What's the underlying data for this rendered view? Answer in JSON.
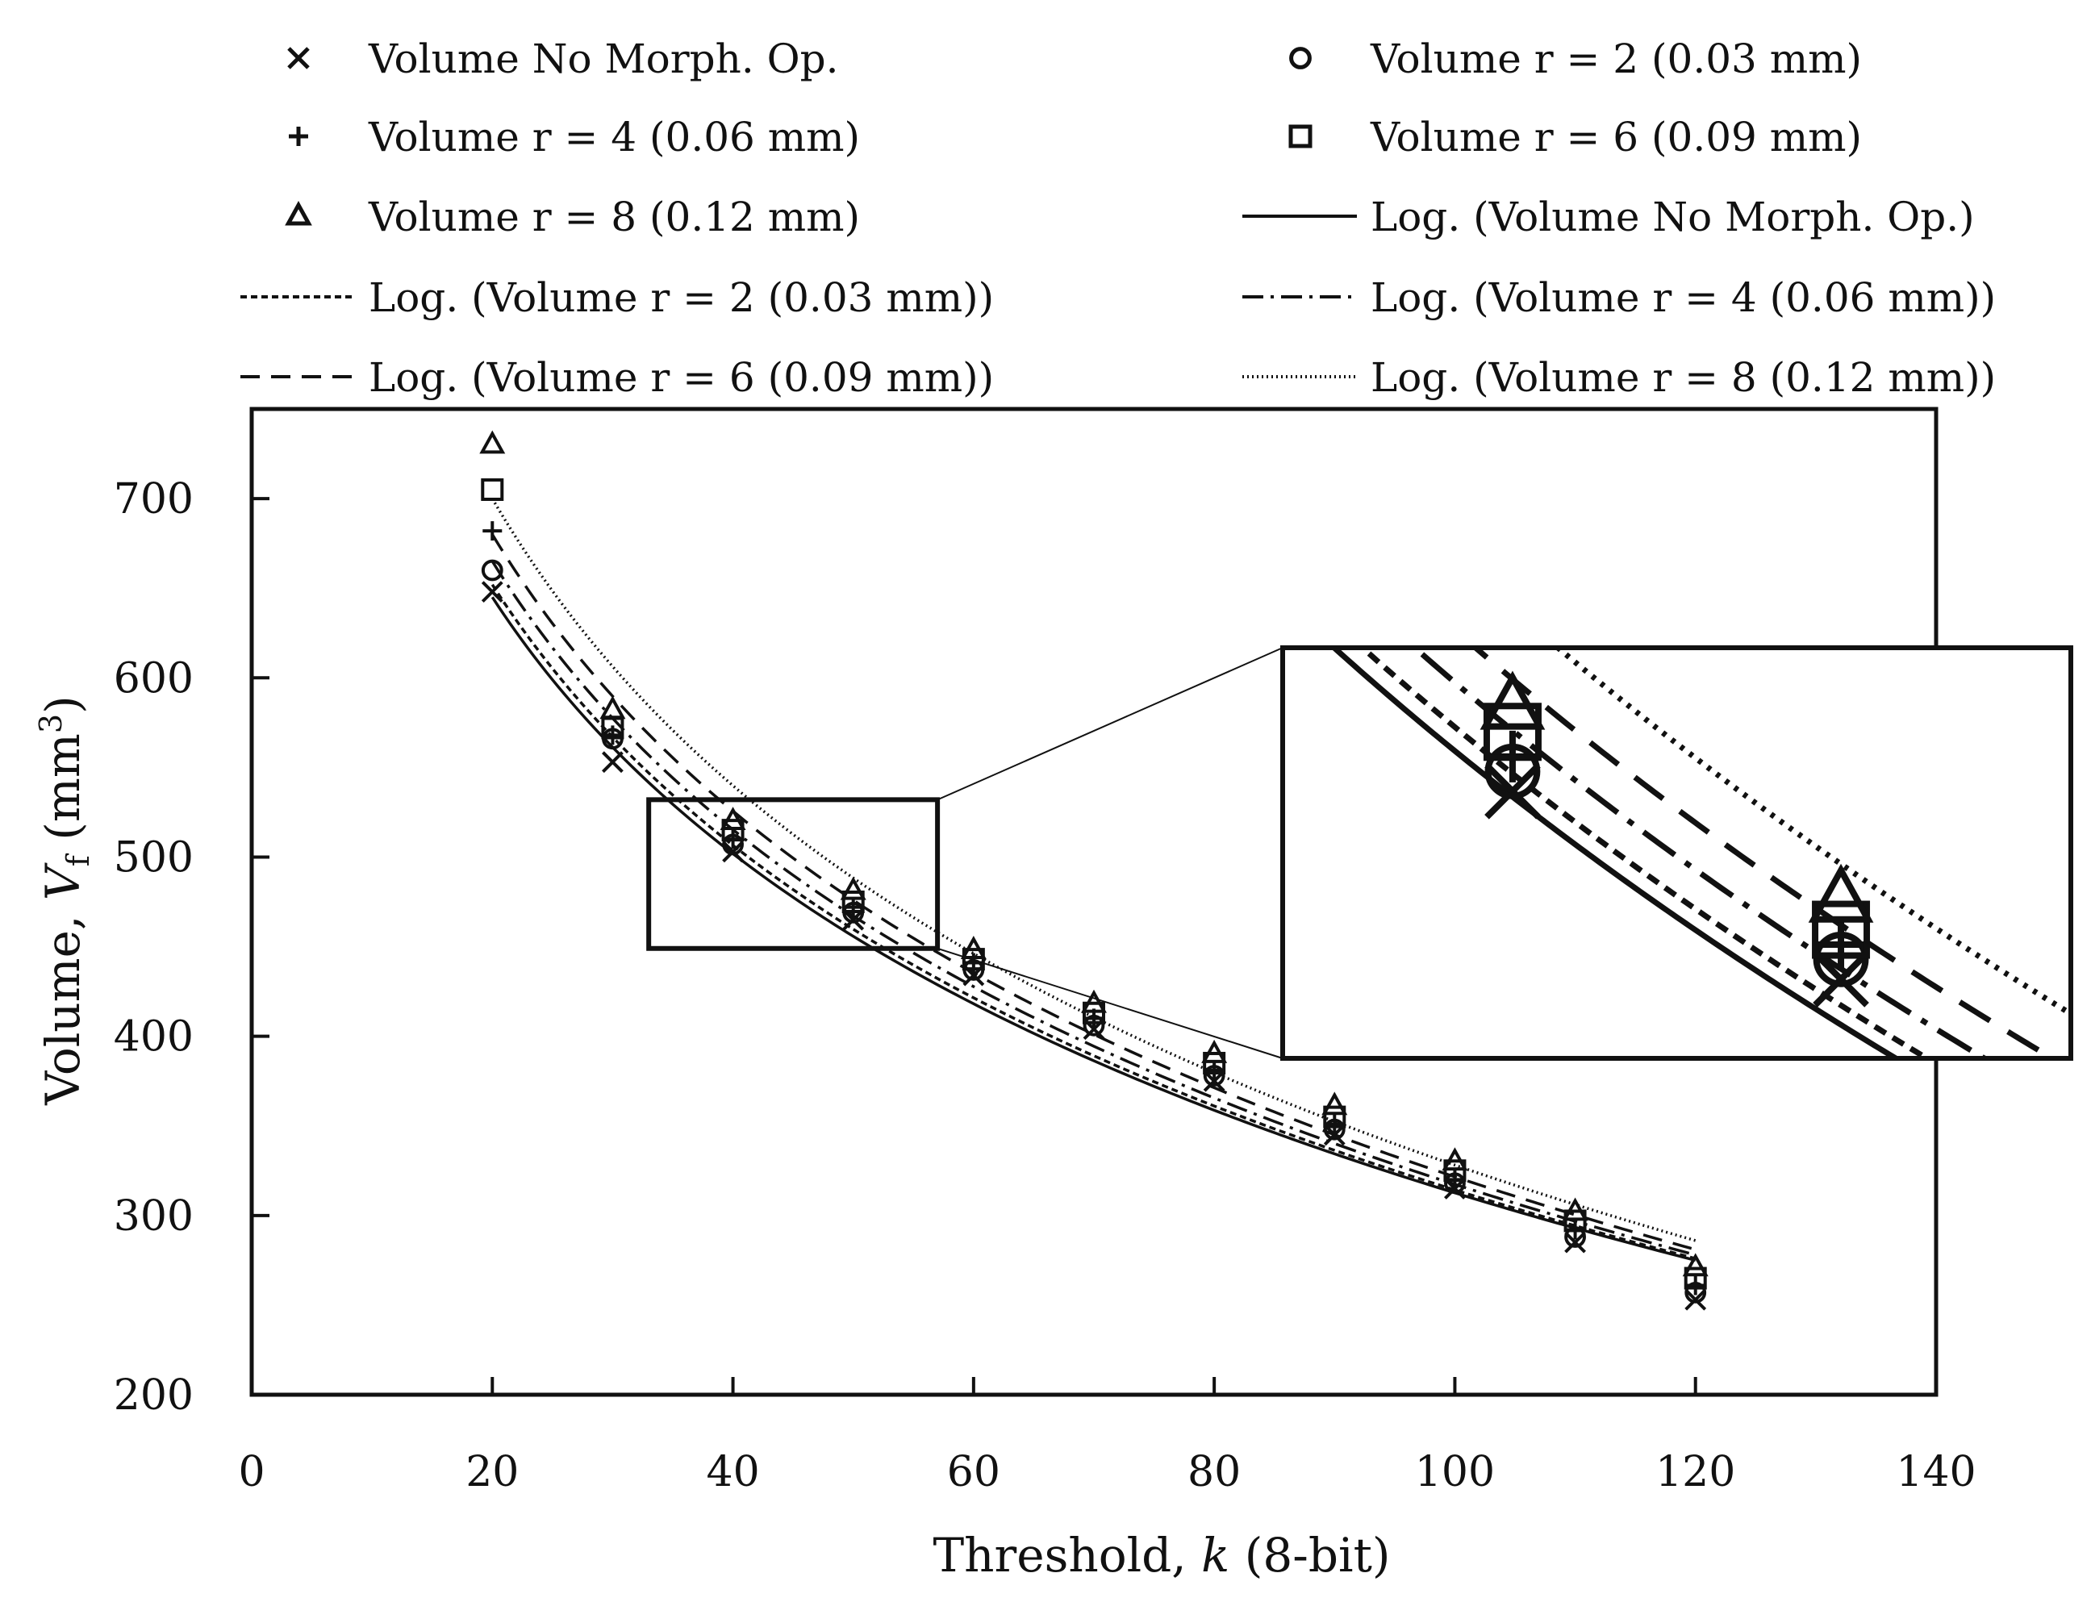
{
  "chart_data": {
    "type": "scatter",
    "title": "",
    "xlabel": "Threshold, k (8-bit)",
    "xlabel_parts": {
      "prefix": "Threshold, ",
      "var": "k",
      "suffix": " (8-bit)"
    },
    "ylabel": "Volume, Vf (mm³)",
    "ylabel_parts": {
      "prefix": "Volume, ",
      "var": "V",
      "sub": "f",
      "suffix": " (mm",
      "sup": "3",
      "close": ")"
    },
    "xlim": [
      0,
      140
    ],
    "ylim": [
      200,
      750
    ],
    "xticks": [
      0,
      20,
      40,
      60,
      80,
      100,
      120,
      140
    ],
    "yticks": [
      200,
      300,
      400,
      500,
      600,
      700
    ],
    "grid": false,
    "legend_position": "top",
    "x": [
      20,
      30,
      40,
      50,
      60,
      70,
      80,
      90,
      100,
      110,
      120
    ],
    "series": [
      {
        "name": "Volume No Morph. Op.",
        "marker": "x",
        "values": [
          648,
          553,
          503,
          465,
          434,
          404,
          375,
          345,
          315,
          285,
          253
        ]
      },
      {
        "name": "Volume r = 2 (0.03 mm)",
        "marker": "circle",
        "values": [
          660,
          566,
          507,
          469,
          437,
          406,
          378,
          348,
          318,
          288,
          257
        ]
      },
      {
        "name": "Volume r = 4 (0.06 mm)",
        "marker": "plus",
        "values": [
          682,
          568,
          510,
          472,
          441,
          410,
          381,
          351,
          320,
          292,
          261
        ]
      },
      {
        "name": "Volume r = 6 (0.09 mm)",
        "marker": "square",
        "values": [
          705,
          572,
          515,
          475,
          443,
          413,
          385,
          355,
          325,
          297,
          265
        ]
      },
      {
        "name": "Volume r = 8 (0.12 mm)",
        "marker": "triangle",
        "values": [
          730,
          582,
          520,
          481,
          448,
          418,
          390,
          361,
          330,
          302,
          271
        ]
      }
    ],
    "trendlines": [
      {
        "name": "Log. (Volume No Morph. Op.)",
        "style": "solid",
        "start": 645,
        "end": 275
      },
      {
        "name": "Log. (Volume r = 2 (0.03 mm))",
        "style": "dashed-fine",
        "start": 652,
        "end": 276
      },
      {
        "name": "Log. (Volume r = 4 (0.06 mm))",
        "style": "dash-dot",
        "start": 665,
        "end": 278
      },
      {
        "name": "Log. (Volume r = 6 (0.09 mm))",
        "style": "dashed",
        "start": 680,
        "end": 281
      },
      {
        "name": "Log. (Volume r = 8 (0.12 mm))",
        "style": "dotted",
        "start": 700,
        "end": 286
      }
    ],
    "inset": {
      "xrange": [
        33,
        57
      ],
      "yrange": [
        449,
        532
      ],
      "description": "zoom"
    }
  }
}
